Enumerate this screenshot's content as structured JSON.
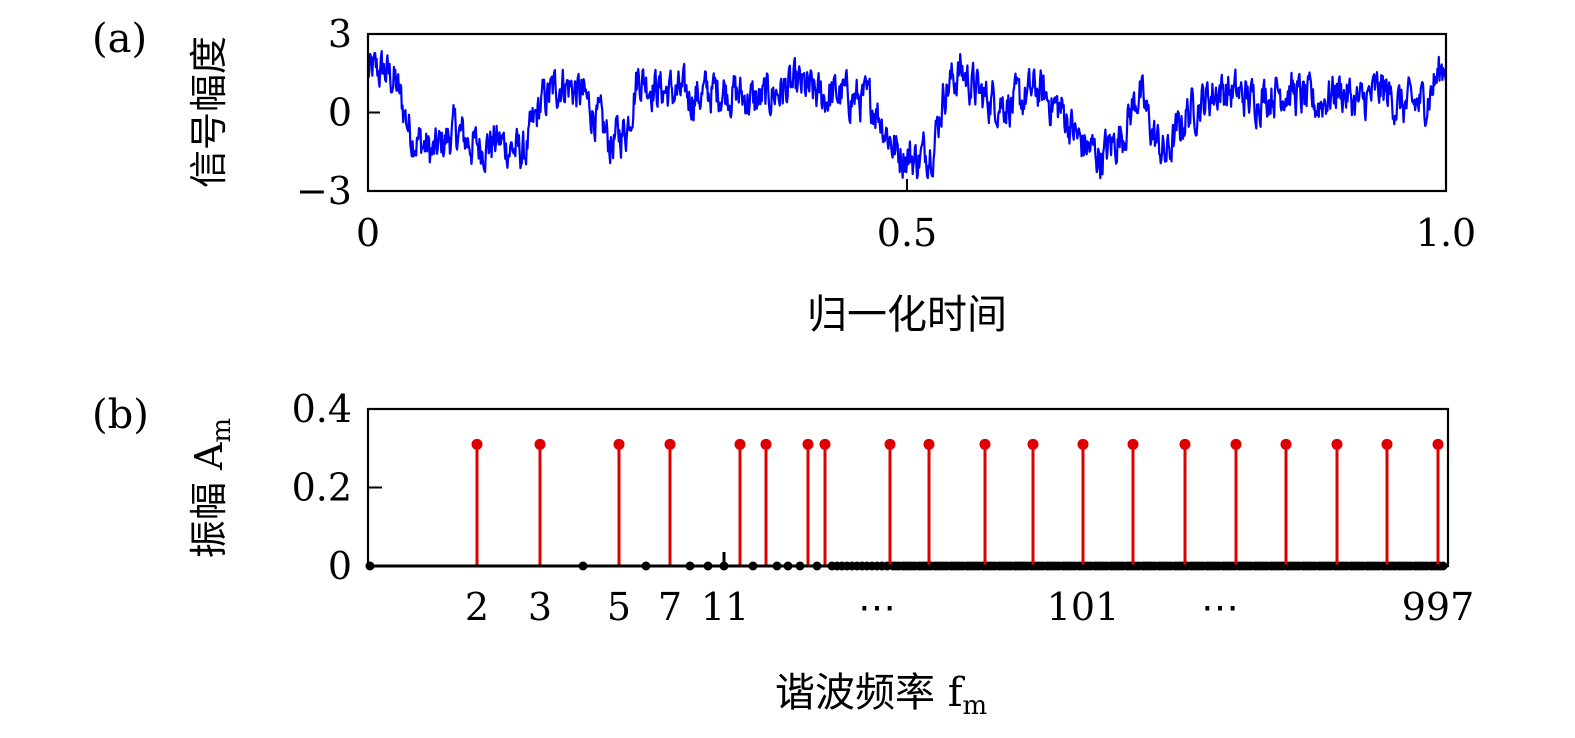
{
  "chart_data": [
    {
      "type": "line",
      "panel_label": "(a)",
      "xlabel": "归一化时间",
      "ylabel": "信号幅度",
      "xlim": [
        0,
        1.0
      ],
      "ylim": [
        -3,
        3
      ],
      "x_ticks": [
        {
          "value": 0,
          "label": "0"
        },
        {
          "value": 0.5,
          "label": "0.5"
        },
        {
          "value": 1.0,
          "label": "1.0"
        }
      ],
      "y_ticks": [
        {
          "value": 3,
          "label": "3"
        },
        {
          "value": 0,
          "label": "0"
        },
        {
          "value": -3,
          "label": "−3"
        }
      ],
      "line_color": "#0000ff",
      "grid": false,
      "trend": [
        [
          0.0,
          1.5
        ],
        [
          0.015,
          1.6
        ],
        [
          0.025,
          1.2
        ],
        [
          0.04,
          -0.8
        ],
        [
          0.06,
          -1.6
        ],
        [
          0.08,
          -0.7
        ],
        [
          0.1,
          -1.3
        ],
        [
          0.12,
          -1.1
        ],
        [
          0.145,
          -1.6
        ],
        [
          0.16,
          0.3
        ],
        [
          0.18,
          1.2
        ],
        [
          0.2,
          0.6
        ],
        [
          0.215,
          -0.4
        ],
        [
          0.225,
          -1.2
        ],
        [
          0.24,
          -0.6
        ],
        [
          0.25,
          1.4
        ],
        [
          0.27,
          0.9
        ],
        [
          0.3,
          0.6
        ],
        [
          0.33,
          0.9
        ],
        [
          0.36,
          0.4
        ],
        [
          0.38,
          0.8
        ],
        [
          0.4,
          1.0
        ],
        [
          0.42,
          0.6
        ],
        [
          0.44,
          0.7
        ],
        [
          0.47,
          0.3
        ],
        [
          0.49,
          -1.5
        ],
        [
          0.51,
          -1.8
        ],
        [
          0.525,
          -1.2
        ],
        [
          0.535,
          0.9
        ],
        [
          0.55,
          1.6
        ],
        [
          0.57,
          0.6
        ],
        [
          0.6,
          0.3
        ],
        [
          0.62,
          0.9
        ],
        [
          0.645,
          0.0
        ],
        [
          0.66,
          -1.1
        ],
        [
          0.68,
          -1.7
        ],
        [
          0.7,
          -0.8
        ],
        [
          0.715,
          0.8
        ],
        [
          0.73,
          -1.0
        ],
        [
          0.74,
          -1.7
        ],
        [
          0.76,
          0.0
        ],
        [
          0.79,
          0.9
        ],
        [
          0.82,
          0.5
        ],
        [
          0.85,
          0.9
        ],
        [
          0.88,
          0.3
        ],
        [
          0.9,
          0.9
        ],
        [
          0.92,
          0.3
        ],
        [
          0.94,
          0.9
        ],
        [
          0.96,
          0.2
        ],
        [
          0.98,
          0.4
        ],
        [
          1.0,
          2.0
        ]
      ]
    },
    {
      "type": "bar",
      "subtype": "stem",
      "panel_label": "(b)",
      "xlabel": "谐波频率 f",
      "xlabel_sub": "m",
      "ylabel": "振幅 A",
      "ylabel_sub": "m",
      "ylim": [
        0,
        0.4
      ],
      "y_ticks": [
        {
          "value": 0.4,
          "label": "0.4"
        },
        {
          "value": 0.2,
          "label": "0.2"
        },
        {
          "value": 0,
          "label": "0"
        }
      ],
      "x_ticks": [
        {
          "label": "2"
        },
        {
          "label": "3"
        },
        {
          "label": "5"
        },
        {
          "label": "7"
        },
        {
          "label": "11"
        },
        {
          "label": "⋯"
        },
        {
          "label": "101"
        },
        {
          "label": "⋯"
        },
        {
          "label": "997"
        }
      ],
      "primary_color": "#dd0000",
      "secondary_color": "#000000",
      "primary_value": 0.31,
      "grid": false
    }
  ]
}
